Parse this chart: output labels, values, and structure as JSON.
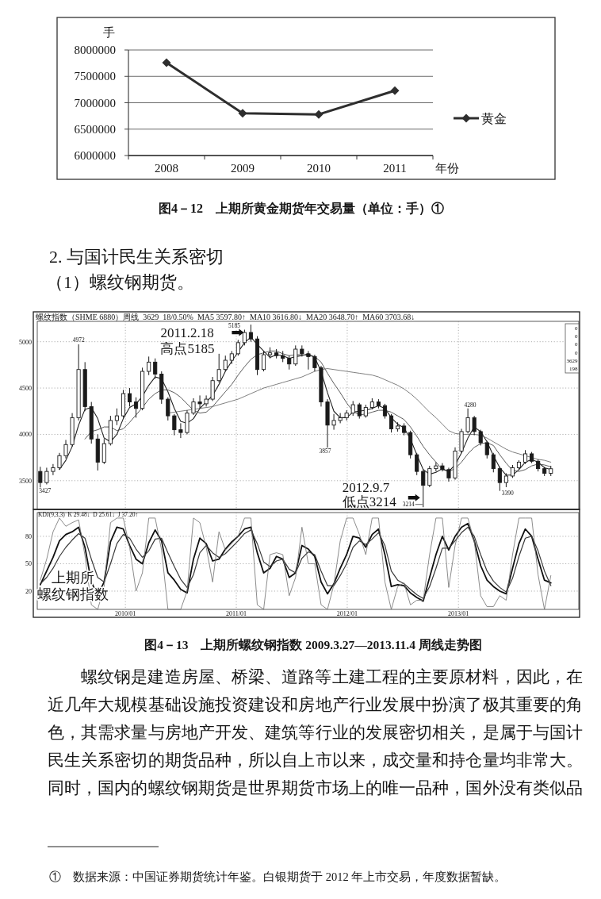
{
  "chart_data": [
    {
      "type": "line",
      "title": "图4－12　上期所黄金期货年交易量（单位：手）①",
      "categories": [
        "2008",
        "2009",
        "2010",
        "2011"
      ],
      "series": [
        {
          "name": "黄金",
          "color": "#2e2e2e",
          "values": [
            7760000,
            6800000,
            6780000,
            7230000
          ]
        }
      ],
      "ylim": [
        6000000,
        8000000
      ],
      "yticks": [
        6000000,
        6500000,
        7000000,
        7500000,
        8000000
      ],
      "ylabel": "手",
      "xlabel": "年份",
      "grid": "y",
      "legend": "right",
      "marker": "diamond"
    },
    {
      "type": "other",
      "annotations": [
        "2. 与国计民生关系密切",
        "（1）螺纹钢期货。"
      ]
    },
    {
      "type": "candlestick",
      "title": "图4－13　上期所螺纹钢指数 2009.3.27—2013.11.4 周线走势图",
      "subtitle": "螺纹指数（SHME 6880）周线  3629  18/0.50%  MA5 3597.80↑  MA10 3616.80↓  MA20 3648.70↑  MA60 3703.68↓",
      "x": [
        "2009-03-27",
        "2009-04-17",
        "2009-05-08",
        "2009-05-29",
        "2009-06-19",
        "2009-07-10",
        "2009-07-31",
        "2009-08-21",
        "2009-09-11",
        "2009-10-02",
        "2009-10-23",
        "2009-11-13",
        "2009-12-04",
        "2009-12-25",
        "2010-01-15",
        "2010-02-05",
        "2010-02-26",
        "2010-03-19",
        "2010-04-09",
        "2010-04-30",
        "2010-05-21",
        "2010-06-11",
        "2010-07-02",
        "2010-07-23",
        "2010-08-13",
        "2010-09-03",
        "2010-09-24",
        "2010-10-15",
        "2010-11-05",
        "2010-11-26",
        "2010-12-17",
        "2011-01-07",
        "2011-01-28",
        "2011-02-18",
        "2011-03-11",
        "2011-04-01",
        "2011-04-22",
        "2011-05-13",
        "2011-06-03",
        "2011-06-24",
        "2011-07-15",
        "2011-08-05",
        "2011-08-26",
        "2011-09-16",
        "2011-10-07",
        "2011-10-28",
        "2011-11-18",
        "2011-12-09",
        "2011-12-30",
        "2012-01-20",
        "2012-02-10",
        "2012-03-02",
        "2012-03-23",
        "2012-04-13",
        "2012-05-04",
        "2012-05-25",
        "2012-06-15",
        "2012-07-06",
        "2012-07-27",
        "2012-08-17",
        "2012-09-07",
        "2012-09-28",
        "2012-10-19",
        "2012-11-09",
        "2012-11-30",
        "2012-12-21",
        "2013-01-11",
        "2013-02-01",
        "2013-02-22",
        "2013-03-15",
        "2013-04-05",
        "2013-04-26",
        "2013-05-17",
        "2013-06-07",
        "2013-06-28",
        "2013-07-19",
        "2013-08-09",
        "2013-08-30",
        "2013-09-20",
        "2013-10-11",
        "2013-11-01"
      ],
      "ohlc": [
        [
          3600,
          3650,
          3427,
          3480
        ],
        [
          3480,
          3640,
          3460,
          3600
        ],
        [
          3600,
          3680,
          3560,
          3640
        ],
        [
          3640,
          3800,
          3620,
          3770
        ],
        [
          3770,
          3940,
          3740,
          3890
        ],
        [
          3890,
          4230,
          3870,
          4180
        ],
        [
          4180,
          4972,
          4150,
          4700
        ],
        [
          4700,
          4780,
          4250,
          4300
        ],
        [
          4300,
          4350,
          3900,
          3950
        ],
        [
          3950,
          4000,
          3610,
          3700
        ],
        [
          3700,
          3950,
          3680,
          3900
        ],
        [
          3900,
          4200,
          3880,
          4150
        ],
        [
          4150,
          4280,
          4100,
          4200
        ],
        [
          4200,
          4480,
          4180,
          4440
        ],
        [
          4440,
          4500,
          4300,
          4350
        ],
        [
          4350,
          4400,
          4180,
          4280
        ],
        [
          4280,
          4720,
          4260,
          4680
        ],
        [
          4680,
          4840,
          4640,
          4780
        ],
        [
          4780,
          4820,
          4600,
          4650
        ],
        [
          4650,
          4680,
          4330,
          4380
        ],
        [
          4380,
          4400,
          4150,
          4200
        ],
        [
          4200,
          4220,
          3990,
          4050
        ],
        [
          4050,
          4120,
          3960,
          4020
        ],
        [
          4020,
          4260,
          4000,
          4230
        ],
        [
          4230,
          4390,
          4210,
          4350
        ],
        [
          4350,
          4420,
          4280,
          4330
        ],
        [
          4330,
          4420,
          4300,
          4380
        ],
        [
          4380,
          4620,
          4360,
          4580
        ],
        [
          4580,
          4870,
          4560,
          4700
        ],
        [
          4700,
          4850,
          4680,
          4800
        ],
        [
          4800,
          4900,
          4760,
          4870
        ],
        [
          4870,
          5020,
          4850,
          4990
        ],
        [
          4990,
          5130,
          4960,
          5100
        ],
        [
          5100,
          5185,
          5000,
          5030
        ],
        [
          5030,
          5060,
          4640,
          4700
        ],
        [
          4700,
          4900,
          4680,
          4860
        ],
        [
          4860,
          4940,
          4820,
          4880
        ],
        [
          4880,
          4920,
          4820,
          4850
        ],
        [
          4850,
          4900,
          4780,
          4820
        ],
        [
          4820,
          4850,
          4700,
          4760
        ],
        [
          4760,
          4960,
          4740,
          4920
        ],
        [
          4920,
          4960,
          4840,
          4870
        ],
        [
          4870,
          4900,
          4700,
          4840
        ],
        [
          4840,
          4860,
          4680,
          4720
        ],
        [
          4720,
          4740,
          4300,
          4350
        ],
        [
          4350,
          4380,
          3857,
          4100
        ],
        [
          4100,
          4220,
          4050,
          4150
        ],
        [
          4150,
          4230,
          4120,
          4180
        ],
        [
          4180,
          4260,
          4150,
          4230
        ],
        [
          4230,
          4360,
          4200,
          4320
        ],
        [
          4320,
          4340,
          4170,
          4200
        ],
        [
          4200,
          4320,
          4180,
          4290
        ],
        [
          4290,
          4390,
          4270,
          4350
        ],
        [
          4350,
          4380,
          4280,
          4310
        ],
        [
          4310,
          4330,
          4170,
          4200
        ],
        [
          4200,
          4220,
          4020,
          4060
        ],
        [
          4060,
          4130,
          4030,
          4090
        ],
        [
          4090,
          4120,
          3990,
          4020
        ],
        [
          4020,
          4040,
          3740,
          3780
        ],
        [
          3780,
          3800,
          3560,
          3600
        ],
        [
          3600,
          3620,
          3214,
          3450
        ],
        [
          3450,
          3660,
          3430,
          3630
        ],
        [
          3630,
          3700,
          3600,
          3660
        ],
        [
          3660,
          3690,
          3600,
          3620
        ],
        [
          3620,
          3640,
          3490,
          3530
        ],
        [
          3530,
          3860,
          3510,
          3820
        ],
        [
          3820,
          4060,
          3800,
          4030
        ],
        [
          4030,
          4280,
          4010,
          4180
        ],
        [
          4180,
          4200,
          3990,
          4030
        ],
        [
          4030,
          4050,
          3880,
          3910
        ],
        [
          3910,
          3930,
          3740,
          3780
        ],
        [
          3780,
          3800,
          3590,
          3630
        ],
        [
          3630,
          3650,
          3390,
          3480
        ],
        [
          3480,
          3580,
          3430,
          3550
        ],
        [
          3550,
          3670,
          3530,
          3640
        ],
        [
          3640,
          3720,
          3620,
          3700
        ],
        [
          3700,
          3830,
          3680,
          3790
        ],
        [
          3790,
          3810,
          3690,
          3710
        ],
        [
          3710,
          3730,
          3600,
          3630
        ],
        [
          3630,
          3650,
          3550,
          3580
        ],
        [
          3580,
          3660,
          3550,
          3629
        ]
      ],
      "color": "#1a1a1a",
      "series": [
        {
          "type": "line",
          "color": "#222222",
          "values": [
            null,
            null,
            null,
            3620,
            3720,
            3870,
            4100,
            4270,
            4290,
            4170,
            3960,
            3920,
            4000,
            4170,
            4290,
            4330,
            4410,
            4530,
            4620,
            4600,
            4460,
            4280,
            4140,
            4120,
            4170,
            4280,
            4350,
            4420,
            4540,
            4680,
            4790,
            4890,
            4990,
            5050,
            4970,
            4900,
            4830,
            4860,
            4850,
            4820,
            4840,
            4850,
            4870,
            4830,
            4680,
            4450,
            4250,
            4180,
            4180,
            4240,
            4250,
            4260,
            4280,
            4310,
            4280,
            4180,
            4110,
            4070,
            3950,
            3780,
            3620,
            3570,
            3590,
            3630,
            3600,
            3670,
            3800,
            3960,
            4080,
            4030,
            3920,
            3770,
            3640,
            3560,
            3560,
            3620,
            3700,
            3730,
            3700,
            3640,
            3620
          ]
        },
        {
          "type": "line",
          "color": "#4a4a4a",
          "values": [
            null,
            null,
            null,
            null,
            null,
            null,
            null,
            3950,
            4030,
            4050,
            4080,
            4080,
            4040,
            4060,
            4130,
            4210,
            4290,
            4380,
            4440,
            4480,
            4480,
            4450,
            4400,
            4330,
            4260,
            4230,
            4240,
            4300,
            4380,
            4460,
            4540,
            4640,
            4730,
            4810,
            4860,
            4880,
            4900,
            4900,
            4870,
            4850,
            4860,
            4860,
            4850,
            4840,
            4780,
            4660,
            4550,
            4450,
            4340,
            4250,
            4210,
            4220,
            4240,
            4260,
            4260,
            4240,
            4200,
            4160,
            4080,
            3980,
            3870,
            3780,
            3700,
            3620,
            3600,
            3630,
            3700,
            3790,
            3860,
            3900,
            3910,
            3880,
            3780,
            3690,
            3610,
            3600,
            3620,
            3660,
            3680,
            3670,
            3650
          ]
        },
        {
          "type": "line",
          "color": "#5e5e5e",
          "values": [
            null,
            null,
            null,
            null,
            null,
            null,
            null,
            null,
            null,
            null,
            null,
            null,
            null,
            null,
            null,
            null,
            null,
            null,
            null,
            null,
            4230,
            4240,
            4250,
            4260,
            4270,
            4280,
            4290,
            4300,
            4320,
            4340,
            4360,
            4380,
            4410,
            4440,
            4470,
            4500,
            4520,
            4540,
            4560,
            4580,
            4600,
            4620,
            4650,
            4680,
            4700,
            4710,
            4700,
            4690,
            4680,
            4670,
            4660,
            4650,
            4640,
            4620,
            4590,
            4560,
            4530,
            4490,
            4440,
            4380,
            4310,
            4240,
            4180,
            4110,
            4040,
            4010,
            4000,
            4000,
            4000,
            3990,
            3960,
            3920,
            3880,
            3840,
            3810,
            3790,
            3770,
            3750,
            3730,
            3720,
            3700
          ]
        }
      ],
      "xlim": [
        "2009-03-17",
        "2014-02-01"
      ],
      "xticks": [
        {
          "value": "2010-01-01",
          "label": null
        },
        {
          "value": "2011-01-01",
          "label": null
        },
        {
          "value": "2012-01-01",
          "label": null
        },
        {
          "value": "2013-01-01",
          "label": null
        }
      ],
      "ylim": [
        3190,
        5220
      ],
      "yticks": [
        3500,
        4000,
        4500,
        5000
      ],
      "grid": true,
      "tick_labels": "y",
      "annotations": [
        {
          "text": "2011.2.18\n高点5185",
          "x": "2011-02-18",
          "y": 5185
        },
        {
          "text": "2012.9.7\n低点3214",
          "x": "2012-09-07",
          "y": 3214
        },
        {
          "text": "4972",
          "x": "2009-07-31",
          "y": 4972
        },
        {
          "text": "3427",
          "x": "2009-03-27",
          "y": 3427
        },
        {
          "text": "5185",
          "x": "2011-02-18",
          "y": 5185
        },
        {
          "text": "3857",
          "x": "2011-10-28",
          "y": 3857
        },
        {
          "text": "4280",
          "x": "2013-02-01",
          "y": 4280
        },
        {
          "text": "3214",
          "x": "2012-09-07",
          "y": 3214
        },
        {
          "text": "3390",
          "x": "2013-05-17",
          "y": 3390
        },
        "0\n0\n0\n0\n3629\n198"
      ]
    },
    {
      "type": "line",
      "subtitle": "KDJ(9,3,3)  K 29.48↓  D 25.61↓  J 37.20↑",
      "x": [
        "2009-03-27",
        "2009-04-17",
        "2009-05-08",
        "2009-05-29",
        "2009-06-19",
        "2009-07-10",
        "2009-07-31",
        "2009-08-21",
        "2009-09-11",
        "2009-10-02",
        "2009-10-23",
        "2009-11-13",
        "2009-12-04",
        "2009-12-25",
        "2010-01-15",
        "2010-02-05",
        "2010-02-26",
        "2010-03-19",
        "2010-04-09",
        "2010-04-30",
        "2010-05-21",
        "2010-06-11",
        "2010-07-02",
        "2010-07-23",
        "2010-08-13",
        "2010-09-03",
        "2010-09-24",
        "2010-10-15",
        "2010-11-05",
        "2010-11-26",
        "2010-12-17",
        "2011-01-07",
        "2011-01-28",
        "2011-02-18",
        "2011-03-11",
        "2011-04-01",
        "2011-04-22",
        "2011-05-13",
        "2011-06-03",
        "2011-06-24",
        "2011-07-15",
        "2011-08-05",
        "2011-08-26",
        "2011-09-16",
        "2011-10-07",
        "2011-10-28",
        "2011-11-18",
        "2011-12-09",
        "2011-12-30",
        "2012-01-20",
        "2012-02-10",
        "2012-03-02",
        "2012-03-23",
        "2012-04-13",
        "2012-05-04",
        "2012-05-25",
        "2012-06-15",
        "2012-07-06",
        "2012-07-27",
        "2012-08-17",
        "2012-09-07",
        "2012-09-28",
        "2012-10-19",
        "2012-11-09",
        "2012-11-30",
        "2012-12-21",
        "2013-01-11",
        "2013-02-01",
        "2013-02-22",
        "2013-03-15",
        "2013-04-05",
        "2013-04-26",
        "2013-05-17",
        "2013-06-07",
        "2013-06-28",
        "2013-07-19",
        "2013-08-09",
        "2013-08-30",
        "2013-09-20",
        "2013-10-11",
        "2013-11-01"
      ],
      "series": [
        {
          "color": "#111111",
          "values": [
            27,
            42,
            57,
            75,
            82,
            85,
            90,
            68,
            30,
            15,
            30,
            74,
            90,
            88,
            70,
            55,
            50,
            73,
            87,
            75,
            40,
            32,
            22,
            18,
            55,
            78,
            72,
            53,
            55,
            66,
            74,
            80,
            88,
            90,
            62,
            40,
            45,
            58,
            55,
            35,
            40,
            70,
            66,
            58,
            30,
            17,
            28,
            45,
            60,
            80,
            78,
            68,
            82,
            88,
            60,
            25,
            27,
            26,
            18,
            13,
            9,
            35,
            60,
            80,
            65,
            80,
            90,
            94,
            75,
            48,
            32,
            25,
            20,
            17,
            45,
            72,
            88,
            80,
            55,
            32,
            29
          ]
        },
        {
          "color": "#3a3a3a",
          "values": [
            28,
            35,
            45,
            58,
            68,
            76,
            83,
            78,
            55,
            35,
            30,
            50,
            72,
            82,
            78,
            66,
            57,
            64,
            77,
            78,
            62,
            47,
            33,
            24,
            38,
            62,
            70,
            62,
            57,
            61,
            68,
            75,
            83,
            87,
            72,
            52,
            47,
            53,
            55,
            44,
            40,
            56,
            63,
            60,
            42,
            26,
            26,
            37,
            50,
            68,
            75,
            71,
            77,
            84,
            70,
            42,
            32,
            28,
            22,
            16,
            12,
            25,
            45,
            67,
            67,
            75,
            84,
            90,
            80,
            60,
            42,
            31,
            24,
            19,
            34,
            58,
            78,
            80,
            64,
            42,
            26
          ]
        },
        {
          "color": "#6e6e6e",
          "values": [
            32,
            55,
            85,
            100,
            91,
            95,
            98,
            59,
            5,
            0,
            25,
            95,
            100,
            100,
            68,
            20,
            40,
            100,
            100,
            65,
            0,
            0,
            0,
            20,
            100,
            95,
            68,
            30,
            85,
            65,
            72,
            80,
            100,
            100,
            5,
            0,
            60,
            62,
            60,
            15,
            35,
            90,
            50,
            50,
            5,
            0,
            27,
            75,
            100,
            100,
            82,
            60,
            100,
            100,
            30,
            0,
            25,
            29,
            5,
            10,
            10,
            60,
            100,
            100,
            24,
            70,
            100,
            100,
            75,
            15,
            3,
            3,
            15,
            10,
            60,
            100,
            100,
            100,
            38,
            0,
            37
          ]
        }
      ],
      "xlim": [
        "2009-03-17",
        "2014-02-01"
      ],
      "xticks": [
        {
          "value": "2010-01-01",
          "label": "2010/01"
        },
        {
          "value": "2011-01-01",
          "label": "2011/01"
        },
        {
          "value": "2012-01-01",
          "label": "2012/01"
        },
        {
          "value": "2013-01-01",
          "label": "2013/01"
        }
      ],
      "ylim": [
        0,
        106
      ],
      "yticks": [
        20,
        50,
        80
      ],
      "grid": true,
      "annotations": [
        "上期所",
        "螺纹钢指数"
      ]
    },
    {
      "type": "other",
      "annotations": [
        "螺纹钢是建造房屋、桥梁、道路等土建工程的主要原材料，因此，在",
        "近几年大规模基础设施投资建设和房地产行业发展中扮演了极其重要的角",
        "色，其需求量与房地产开发、建筑等行业的发展密切相关，是属于与国计",
        "民生关系密切的期货品种，所以自上市以来，成交量和持仓量均非常大。",
        "同时，国内的螺纹钢期货是世界期货市场上的唯一品种，国外没有类似品",
        "①　数据来源：中国证券期货统计年鉴。白银期货于 2012 年上市交易，年度数据暂缺。"
      ]
    }
  ]
}
